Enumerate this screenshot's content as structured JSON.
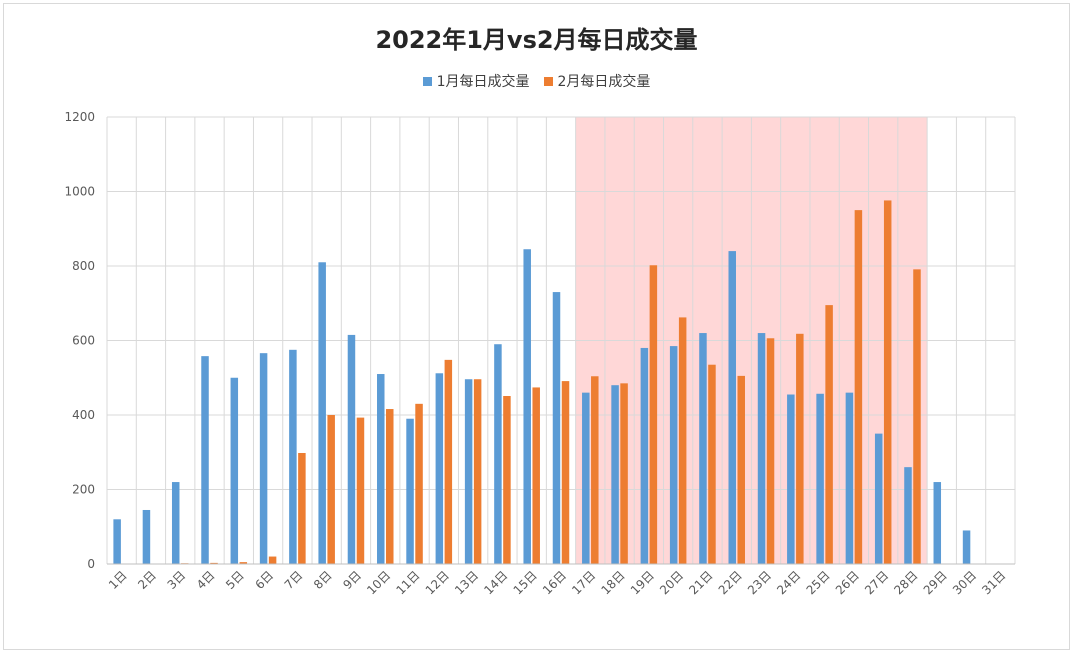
{
  "chart_data": {
    "type": "bar",
    "title": "2022年1月vs2月每日成交量",
    "categories": [
      "1日",
      "2日",
      "3日",
      "4日",
      "5日",
      "6日",
      "7日",
      "8日",
      "9日",
      "10日",
      "11日",
      "12日",
      "13日",
      "14日",
      "15日",
      "16日",
      "17日",
      "18日",
      "19日",
      "20日",
      "21日",
      "22日",
      "23日",
      "24日",
      "25日",
      "26日",
      "27日",
      "28日",
      "29日",
      "30日",
      "31日"
    ],
    "series": [
      {
        "name": "1月每日成交量",
        "color": "#5b9bd5",
        "values": [
          120,
          145,
          220,
          558,
          500,
          566,
          575,
          810,
          615,
          510,
          390,
          512,
          496,
          590,
          845,
          730,
          460,
          480,
          580,
          585,
          620,
          840,
          620,
          455,
          457,
          460,
          350,
          260,
          220,
          90,
          0
        ]
      },
      {
        "name": "2月每日成交量",
        "color": "#ed7d31",
        "values": [
          0,
          0,
          2,
          3,
          5,
          20,
          298,
          400,
          393,
          416,
          430,
          548,
          496,
          451,
          474,
          491,
          504,
          485,
          802,
          662,
          535,
          505,
          606,
          618,
          695,
          950,
          976,
          791,
          0,
          0,
          0
        ]
      }
    ],
    "ylim": [
      0,
      1200
    ],
    "yticks": [
      "0",
      "200",
      "400",
      "600",
      "800",
      "1000",
      "1200"
    ],
    "grid": true,
    "legend_position": "top",
    "highlight": {
      "from": "17日",
      "to": "28日",
      "color": "#ffd7d7"
    }
  }
}
